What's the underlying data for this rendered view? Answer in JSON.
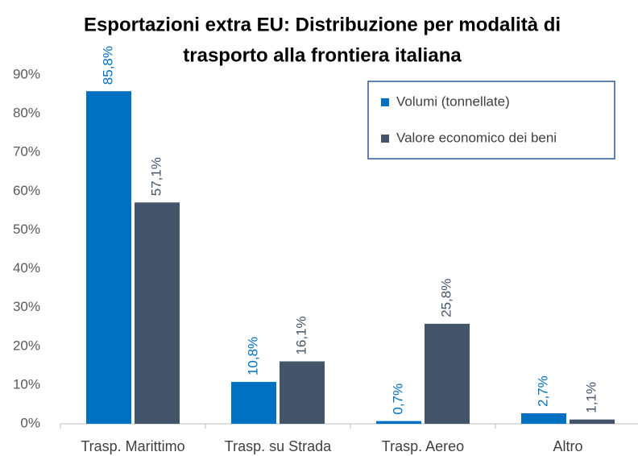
{
  "chart_data": {
    "type": "bar",
    "title": [
      "Esportazioni extra EU: Distribuzione per modalità di",
      "trasporto alla frontiera italiana"
    ],
    "categories": [
      "Trasp. Marittimo",
      "Trasp. su Strada",
      "Trasp. Aereo",
      "Altro"
    ],
    "series": [
      {
        "name": "Volumi (tonnellate)",
        "color": "#0070c0",
        "values": [
          85.8,
          10.8,
          0.7,
          2.7
        ],
        "value_labels": [
          "85,8%",
          "10,8%",
          "0,7%",
          "2,7%"
        ]
      },
      {
        "name": "Valore economico dei beni",
        "color": "#44546a",
        "values": [
          57.1,
          16.1,
          25.8,
          1.1
        ],
        "value_labels": [
          "57,1%",
          "16,1%",
          "25,8%",
          "1,1%"
        ]
      }
    ],
    "ylim": [
      0,
      90
    ],
    "yticks": [
      {
        "value": 0,
        "label": "0%"
      },
      {
        "value": 10,
        "label": "10%"
      },
      {
        "value": 20,
        "label": "20%"
      },
      {
        "value": 30,
        "label": "30%"
      },
      {
        "value": 40,
        "label": "40%"
      },
      {
        "value": 50,
        "label": "50%"
      },
      {
        "value": 60,
        "label": "60%"
      },
      {
        "value": 70,
        "label": "70%"
      },
      {
        "value": 80,
        "label": "80%"
      },
      {
        "value": 90,
        "label": "90%"
      }
    ],
    "grid": false,
    "legend": "upper right"
  }
}
